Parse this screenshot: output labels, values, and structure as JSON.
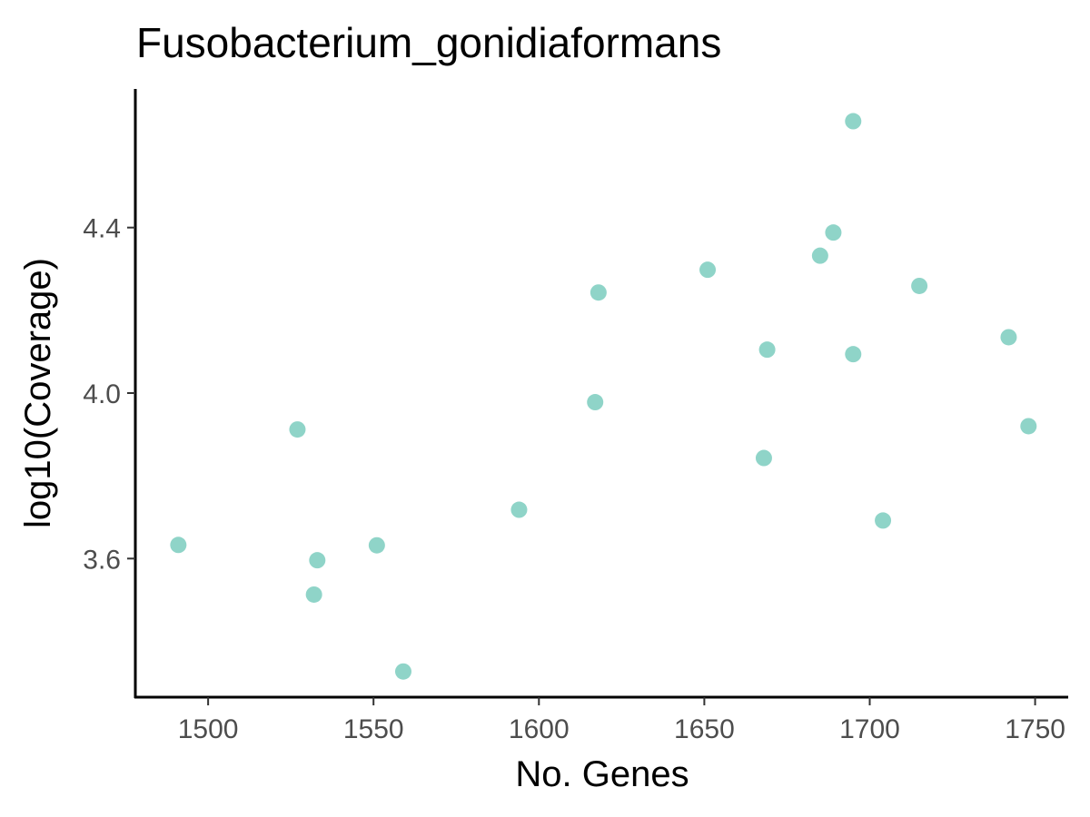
{
  "chart_data": {
    "type": "scatter",
    "title": "Fusobacterium_gonidiaformans",
    "xlabel": "No. Genes",
    "ylabel": "log10(Coverage)",
    "xlim": [
      1478,
      1760
    ],
    "ylim": [
      3.265,
      4.735
    ],
    "xticks": [
      1500,
      1550,
      1600,
      1650,
      1700,
      1750
    ],
    "yticks": [
      3.6,
      4.0,
      4.4
    ],
    "xtick_labels": [
      "1500",
      "1550",
      "1600",
      "1650",
      "1700",
      "1750"
    ],
    "ytick_labels": [
      "3.6",
      "4.0",
      "4.4"
    ],
    "point_color": "#8fd4c8",
    "grid": false,
    "legend": "none",
    "series": [
      {
        "x": [
          1491,
          1527,
          1532,
          1533,
          1551,
          1559,
          1594,
          1617,
          1618,
          1651,
          1668,
          1669,
          1685,
          1689,
          1695,
          1695,
          1704,
          1715,
          1742,
          1748
        ],
        "y": [
          3.633,
          3.912,
          3.513,
          3.596,
          3.632,
          3.327,
          3.718,
          3.978,
          4.243,
          4.298,
          3.843,
          4.105,
          4.332,
          4.388,
          4.657,
          4.094,
          3.692,
          4.259,
          4.135,
          3.92
        ]
      }
    ]
  }
}
